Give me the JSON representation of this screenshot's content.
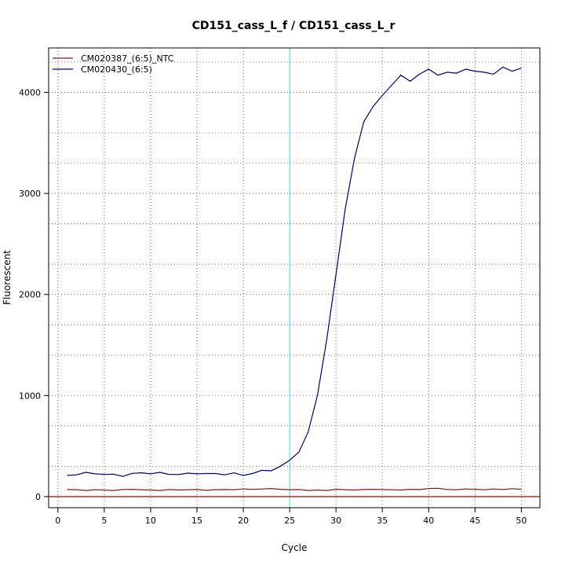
{
  "chart_data": {
    "type": "line",
    "title": "CD151_cass_L_f / CD151_cass_L_r",
    "xlabel": "Cycle",
    "ylabel": "Fluorescent",
    "xlim": [
      -1,
      52
    ],
    "ylim": [
      -110,
      4440
    ],
    "xticks": [
      0,
      5,
      10,
      15,
      20,
      25,
      30,
      35,
      40,
      45,
      50
    ],
    "yticks": [
      0,
      1000,
      2000,
      3000,
      4000
    ],
    "grid_x": [
      0,
      5,
      10,
      15,
      20,
      25,
      30,
      35,
      40,
      45,
      50
    ],
    "grid_y": [
      0,
      300,
      700,
      1000,
      1400,
      1700,
      2000,
      2300,
      2700,
      3000,
      3300,
      3600,
      4000,
      4300
    ],
    "grid": true,
    "legend_position": "top-left",
    "threshold_cycle": 25,
    "baseline_value": 0,
    "x": [
      1,
      2,
      3,
      4,
      5,
      6,
      7,
      8,
      9,
      10,
      11,
      12,
      13,
      14,
      15,
      16,
      17,
      18,
      19,
      20,
      21,
      22,
      23,
      24,
      25,
      26,
      27,
      28,
      29,
      30,
      31,
      32,
      33,
      34,
      35,
      36,
      37,
      38,
      39,
      40,
      41,
      42,
      43,
      44,
      45,
      46,
      47,
      48,
      49,
      50
    ],
    "series": [
      {
        "name": "CM020387_(6:5)_NTC",
        "color": "#8b1a1a",
        "values": [
          70,
          68,
          60,
          68,
          65,
          60,
          70,
          72,
          68,
          65,
          60,
          70,
          65,
          68,
          70,
          62,
          68,
          70,
          68,
          75,
          72,
          75,
          80,
          72,
          68,
          70,
          60,
          65,
          60,
          72,
          68,
          65,
          70,
          72,
          70,
          68,
          65,
          72,
          70,
          80,
          82,
          70,
          68,
          75,
          72,
          68,
          75,
          70,
          78,
          72
        ]
      },
      {
        "name": "CM020430_(6:5)",
        "color": "#00007f",
        "values": [
          210,
          215,
          240,
          225,
          220,
          222,
          200,
          230,
          235,
          225,
          240,
          220,
          218,
          232,
          225,
          228,
          228,
          215,
          235,
          210,
          228,
          260,
          255,
          300,
          360,
          440,
          640,
          1000,
          1550,
          2200,
          2850,
          3350,
          3710,
          3860,
          3970,
          4070,
          4170,
          4110,
          4180,
          4230,
          4170,
          4200,
          4190,
          4230,
          4210,
          4200,
          4180,
          4250,
          4210,
          4240
        ]
      }
    ]
  }
}
